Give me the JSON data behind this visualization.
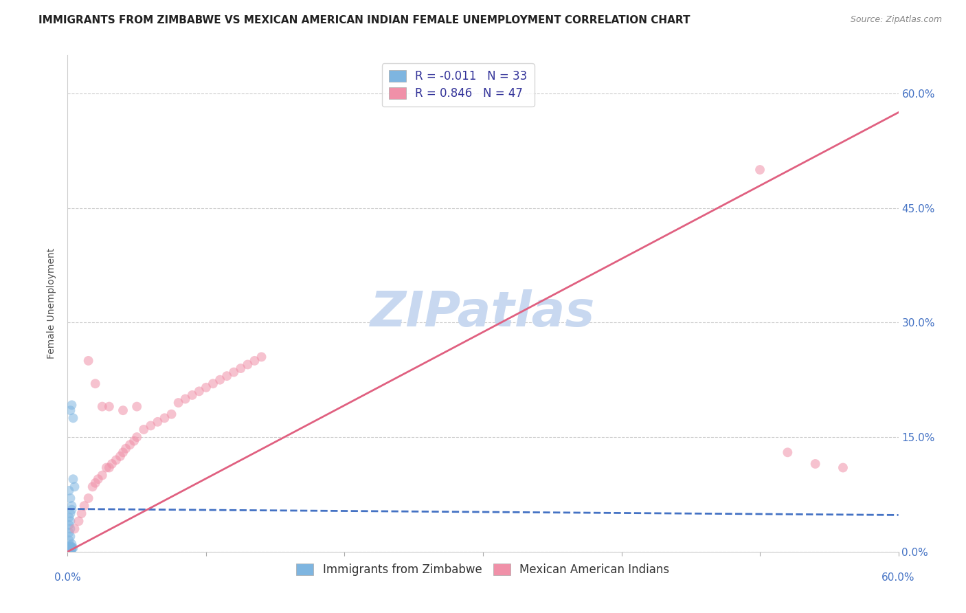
{
  "title": "IMMIGRANTS FROM ZIMBABWE VS MEXICAN AMERICAN INDIAN FEMALE UNEMPLOYMENT CORRELATION CHART",
  "source": "Source: ZipAtlas.com",
  "ylabel": "Female Unemployment",
  "ytick_values": [
    0.0,
    0.15,
    0.3,
    0.45,
    0.6
  ],
  "xlim": [
    0.0,
    0.6
  ],
  "ylim": [
    0.0,
    0.65
  ],
  "watermark": "ZIPatlas",
  "legend_upper": [
    {
      "label": "R = -0.011   N = 33",
      "color": "#aac5e8"
    },
    {
      "label": "R = 0.846   N = 47",
      "color": "#f0a0b0"
    }
  ],
  "blue_scatter_x": [
    0.002,
    0.003,
    0.004,
    0.002,
    0.001,
    0.003,
    0.002,
    0.001,
    0.002,
    0.001,
    0.003,
    0.002,
    0.001,
    0.002,
    0.001,
    0.003,
    0.002,
    0.001,
    0.002,
    0.001,
    0.002,
    0.001,
    0.003,
    0.002,
    0.001,
    0.002,
    0.001,
    0.004,
    0.005,
    0.004,
    0.003,
    0.003,
    0.002
  ],
  "blue_scatter_y": [
    0.185,
    0.192,
    0.175,
    0.04,
    0.035,
    0.06,
    0.05,
    0.045,
    0.07,
    0.08,
    0.055,
    0.03,
    0.025,
    0.02,
    0.015,
    0.01,
    0.008,
    0.006,
    0.004,
    0.003,
    0.005,
    0.007,
    0.006,
    0.004,
    0.003,
    0.002,
    0.005,
    0.095,
    0.085,
    0.005,
    0.004,
    0.003,
    0.002
  ],
  "pink_scatter_x": [
    0.005,
    0.008,
    0.01,
    0.012,
    0.015,
    0.018,
    0.02,
    0.022,
    0.025,
    0.028,
    0.03,
    0.032,
    0.035,
    0.038,
    0.04,
    0.042,
    0.045,
    0.048,
    0.05,
    0.055,
    0.06,
    0.065,
    0.07,
    0.075,
    0.08,
    0.085,
    0.09,
    0.095,
    0.1,
    0.105,
    0.11,
    0.115,
    0.12,
    0.125,
    0.13,
    0.135,
    0.14,
    0.015,
    0.02,
    0.025,
    0.03,
    0.04,
    0.05,
    0.5,
    0.52,
    0.54,
    0.56
  ],
  "pink_scatter_y": [
    0.03,
    0.04,
    0.05,
    0.06,
    0.07,
    0.085,
    0.09,
    0.095,
    0.1,
    0.11,
    0.11,
    0.115,
    0.12,
    0.125,
    0.13,
    0.135,
    0.14,
    0.145,
    0.15,
    0.16,
    0.165,
    0.17,
    0.175,
    0.18,
    0.195,
    0.2,
    0.205,
    0.21,
    0.215,
    0.22,
    0.225,
    0.23,
    0.235,
    0.24,
    0.245,
    0.25,
    0.255,
    0.25,
    0.22,
    0.19,
    0.19,
    0.185,
    0.19,
    0.5,
    0.13,
    0.115,
    0.11
  ],
  "blue_line_x": [
    0.0,
    0.6
  ],
  "blue_line_y": [
    0.056,
    0.048
  ],
  "pink_line_x": [
    0.0,
    0.6
  ],
  "pink_line_y": [
    0.0,
    0.575
  ],
  "scatter_color_blue": "#7eb5e0",
  "scatter_color_pink": "#f090a8",
  "line_color_blue": "#4472c4",
  "line_color_pink": "#e06080",
  "grid_color": "#cccccc",
  "background_color": "#ffffff",
  "title_fontsize": 11,
  "source_fontsize": 9,
  "axis_label_fontsize": 10,
  "tick_fontsize": 11,
  "watermark_fontsize": 52,
  "watermark_color": "#c8d8f0",
  "legend_fontsize": 12,
  "scatter_size": 100
}
